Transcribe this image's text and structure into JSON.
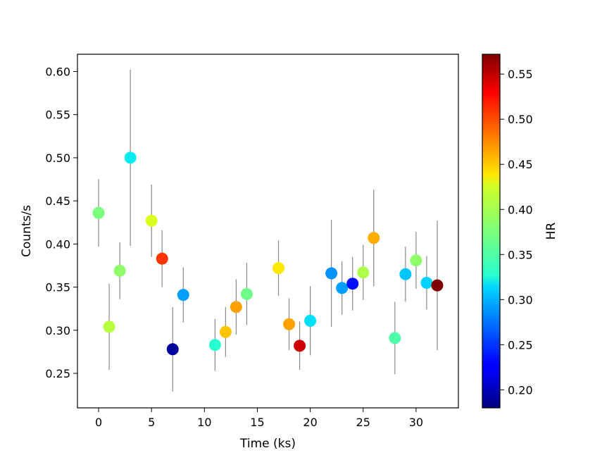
{
  "chart_data": {
    "type": "scatter",
    "xlabel": "Time (ks)",
    "ylabel": "Counts/s",
    "colorbar_label": "HR",
    "colormap": "jet",
    "xlim": [
      -2,
      34
    ],
    "ylim": [
      0.21,
      0.62
    ],
    "clim": [
      0.18,
      0.572
    ],
    "xticks": [
      0,
      5,
      10,
      15,
      20,
      25,
      30
    ],
    "yticks": [
      0.25,
      0.3,
      0.35,
      0.4,
      0.45,
      0.5,
      0.55,
      0.6
    ],
    "cticks": [
      0.2,
      0.25,
      0.3,
      0.35,
      0.4,
      0.45,
      0.5,
      0.55
    ],
    "grid": false,
    "errorbar_color": "#888888",
    "points": [
      {
        "x": 0,
        "y": 0.436,
        "yerr": 0.039,
        "hr": 0.375
      },
      {
        "x": 1,
        "y": 0.304,
        "yerr": 0.05,
        "hr": 0.405
      },
      {
        "x": 2,
        "y": 0.369,
        "yerr": 0.033,
        "hr": 0.385
      },
      {
        "x": 3,
        "y": 0.5,
        "yerr": 0.102,
        "hr": 0.32
      },
      {
        "x": 5,
        "y": 0.427,
        "yerr": 0.042,
        "hr": 0.42
      },
      {
        "x": 6,
        "y": 0.383,
        "yerr": 0.033,
        "hr": 0.515
      },
      {
        "x": 7,
        "y": 0.278,
        "yerr": 0.049,
        "hr": 0.19
      },
      {
        "x": 8,
        "y": 0.341,
        "yerr": 0.032,
        "hr": 0.29
      },
      {
        "x": 11,
        "y": 0.283,
        "yerr": 0.03,
        "hr": 0.335
      },
      {
        "x": 12,
        "y": 0.298,
        "yerr": 0.029,
        "hr": 0.455
      },
      {
        "x": 13,
        "y": 0.327,
        "yerr": 0.032,
        "hr": 0.47
      },
      {
        "x": 14,
        "y": 0.342,
        "yerr": 0.036,
        "hr": 0.37
      },
      {
        "x": 17,
        "y": 0.372,
        "yerr": 0.032,
        "hr": 0.44
      },
      {
        "x": 18,
        "y": 0.307,
        "yerr": 0.03,
        "hr": 0.47
      },
      {
        "x": 19,
        "y": 0.282,
        "yerr": 0.028,
        "hr": 0.545
      },
      {
        "x": 20,
        "y": 0.311,
        "yerr": 0.04,
        "hr": 0.315
      },
      {
        "x": 22,
        "y": 0.366,
        "yerr": 0.062,
        "hr": 0.285
      },
      {
        "x": 23,
        "y": 0.349,
        "yerr": 0.031,
        "hr": 0.29
      },
      {
        "x": 24,
        "y": 0.354,
        "yerr": 0.031,
        "hr": 0.235
      },
      {
        "x": 25,
        "y": 0.367,
        "yerr": 0.032,
        "hr": 0.4
      },
      {
        "x": 26,
        "y": 0.407,
        "yerr": 0.056,
        "hr": 0.465
      },
      {
        "x": 28,
        "y": 0.291,
        "yerr": 0.042,
        "hr": 0.355
      },
      {
        "x": 29,
        "y": 0.365,
        "yerr": 0.032,
        "hr": 0.305
      },
      {
        "x": 30,
        "y": 0.381,
        "yerr": 0.033,
        "hr": 0.385
      },
      {
        "x": 31,
        "y": 0.355,
        "yerr": 0.031,
        "hr": 0.31
      },
      {
        "x": 32,
        "y": 0.352,
        "yerr": 0.075,
        "hr": 0.572
      }
    ]
  }
}
